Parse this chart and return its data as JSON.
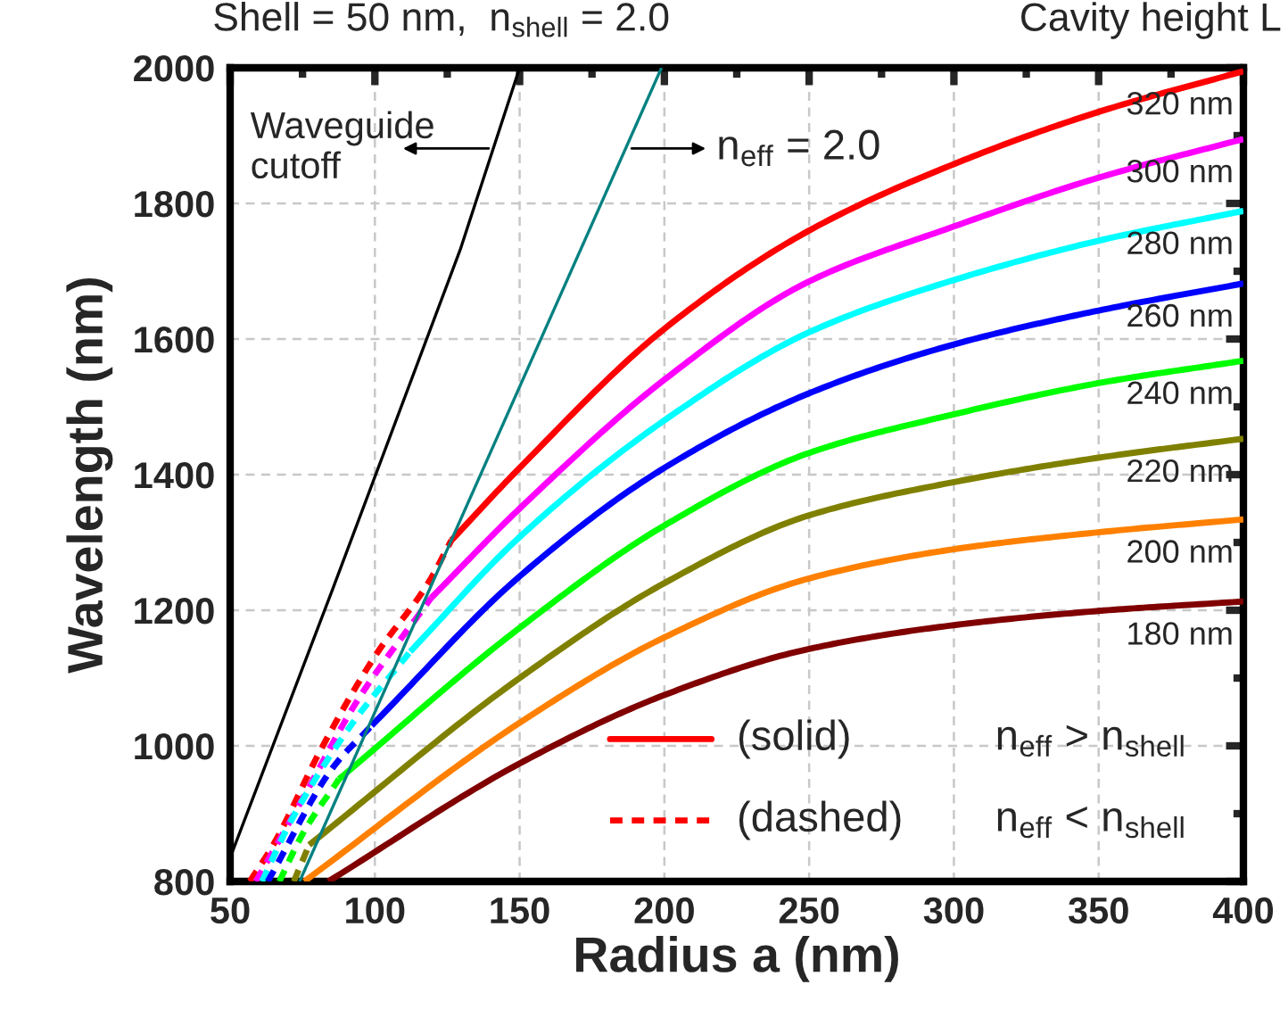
{
  "chart_data": {
    "type": "line",
    "title": "Shell = 50 nm,  n$_{shell}$ = 2.0",
    "xlabel": "Radius a (nm)",
    "ylabel": "Wavelength (nm)",
    "xlim": [
      50,
      400
    ],
    "ylim": [
      800,
      2000
    ],
    "xticks": [
      50,
      100,
      150,
      200,
      250,
      300,
      350,
      400
    ],
    "yticks": [
      800,
      1000,
      1200,
      1400,
      1600,
      1800,
      2000
    ],
    "grid": true,
    "annotations": [
      "Cavity height L",
      "Waveguide\ncutoff",
      "n$_{eff}$ = 2.0",
      "(solid)",
      "n$_{eff}$ > n$_{shell}$",
      "(dashed)",
      "n$_{eff}$ < n$_{shell}$"
    ],
    "series": [
      {
        "name": "320 nm",
        "color": "#ff0000",
        "x": [
          126.4,
          150,
          200,
          250,
          300,
          350,
          400
        ],
        "values": [
          1303,
          1410,
          1615,
          1760,
          1858,
          1935,
          1995
        ]
      },
      {
        "name": "300 nm",
        "color": "#ff00ff",
        "x": [
          119.4,
          150,
          200,
          250,
          300,
          350,
          400
        ],
        "values": [
          1218,
          1350,
          1540,
          1685,
          1766,
          1838,
          1895
        ]
      },
      {
        "name": "280 nm",
        "color": "#00ffff",
        "x": [
          112.2,
          150,
          200,
          250,
          300,
          350,
          400
        ],
        "values": [
          1139,
          1308,
          1480,
          1610,
          1687,
          1745,
          1789
        ]
      },
      {
        "name": "260 nm",
        "color": "#0000ff",
        "x": [
          98.9,
          150,
          200,
          250,
          300,
          350,
          400
        ],
        "values": [
          1030,
          1250,
          1410,
          1520,
          1592,
          1642,
          1682
        ]
      },
      {
        "name": "240 nm",
        "color": "#00ff00",
        "x": [
          87.6,
          150,
          200,
          250,
          300,
          350,
          400
        ],
        "values": [
          951,
          1174,
          1325,
          1432,
          1489,
          1535,
          1568
        ]
      },
      {
        "name": "220 nm",
        "color": "#808000",
        "x": [
          77.3,
          150,
          200,
          250,
          300,
          350,
          400
        ],
        "values": [
          854,
          1100,
          1240,
          1340,
          1389,
          1425,
          1453
        ]
      },
      {
        "name": "200 nm",
        "color": "#ff8000",
        "x": [
          75.6,
          150,
          200,
          250,
          300,
          350,
          400
        ],
        "values": [
          800,
          1034,
          1160,
          1247,
          1290,
          1315,
          1334
        ]
      },
      {
        "name": "180 nm",
        "color": "#800000",
        "x": [
          83.9,
          150,
          200,
          250,
          300,
          350,
          400
        ],
        "values": [
          800,
          974,
          1075,
          1143,
          1178,
          1199,
          1213
        ]
      },
      {
        "color": "#ff0000",
        "line_style": "dashed",
        "x": [
          56.8,
          64.9,
          81.4,
          100,
          118.4,
          126.4
        ],
        "values": [
          800,
          854,
          995,
          1132,
          1240,
          1303
        ]
      },
      {
        "color": "#ff00ff",
        "line_style": "dashed",
        "x": [
          58.9,
          75.3,
          93.7,
          119.4
        ],
        "values": [
          800,
          924,
          1065,
          1218
        ]
      },
      {
        "color": "#00ffff",
        "line_style": "dashed",
        "x": [
          61,
          71,
          91.7,
          112.2
        ],
        "values": [
          800,
          889,
          1030,
          1139
        ]
      },
      {
        "color": "#0000ff",
        "line_style": "dashed",
        "x": [
          63,
          85.5,
          98.9
        ],
        "values": [
          800,
          968,
          1030
        ]
      },
      {
        "color": "#00ff00",
        "line_style": "dashed",
        "x": [
          67,
          75.3,
          87.6
        ],
        "values": [
          800,
          872,
          951
        ]
      },
      {
        "color": "#808000",
        "line_style": "dashed",
        "x": [
          72,
          77.3
        ],
        "values": [
          800,
          854
        ]
      },
      {
        "color": "#000000",
        "x": [
          50,
          85.5,
          129.5,
          150
        ],
        "values": [
          835,
          1232,
          1732,
          2000
        ]
      },
      {
        "color": "#008080",
        "x": [
          74,
          199
        ],
        "values": [
          800,
          2000
        ]
      }
    ]
  }
}
